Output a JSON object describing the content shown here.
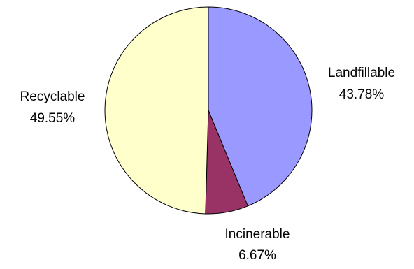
{
  "chart_data": {
    "type": "pie",
    "slices": [
      {
        "label": "Landfillable",
        "value_label": "43.78%",
        "value": 43.78,
        "color": "#9999FF"
      },
      {
        "label": "Incinerable",
        "value_label": "6.67%",
        "value": 6.67,
        "color": "#993366"
      },
      {
        "label": "Recyclable",
        "value_label": "49.55%",
        "value": 49.55,
        "color": "#FFFFCC"
      }
    ]
  }
}
